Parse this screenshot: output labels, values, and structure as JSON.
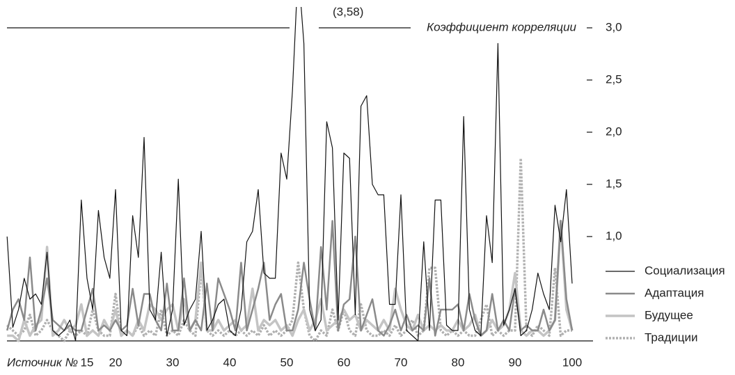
{
  "chart_data": {
    "type": "line",
    "annotation": "(3,58)",
    "y_label": "Коэффициент корреляции",
    "x_label": "Источник №",
    "x": [
      1,
      2,
      3,
      4,
      5,
      6,
      7,
      8,
      9,
      10,
      11,
      12,
      13,
      14,
      15,
      16,
      17,
      18,
      19,
      20,
      21,
      22,
      23,
      24,
      25,
      26,
      27,
      28,
      29,
      30,
      31,
      32,
      33,
      34,
      35,
      36,
      37,
      38,
      39,
      40,
      41,
      42,
      43,
      44,
      45,
      46,
      47,
      48,
      49,
      50,
      51,
      52,
      53,
      54,
      55,
      56,
      57,
      58,
      59,
      60,
      61,
      62,
      63,
      64,
      65,
      66,
      67,
      68,
      69,
      70,
      71,
      72,
      73,
      74,
      75,
      76,
      77,
      78,
      79,
      80,
      81,
      82,
      83,
      84,
      85,
      86,
      87,
      88,
      89,
      90,
      91,
      92,
      93,
      94,
      95,
      96,
      97,
      98,
      99,
      100
    ],
    "xlim": [
      0,
      100
    ],
    "xticks": [
      15,
      20,
      30,
      40,
      50,
      60,
      70,
      80,
      90,
      100
    ],
    "ylim": [
      0,
      3
    ],
    "yticks": [
      {
        "value": 1,
        "label": "1,0"
      },
      {
        "value": 1.5,
        "label": "1,5"
      },
      {
        "value": 2,
        "label": "2,0"
      },
      {
        "value": 2.5,
        "label": "2,5"
      },
      {
        "value": 3,
        "label": "3,0"
      }
    ],
    "grid": false,
    "series": [
      {
        "name": "Социализация",
        "color": "#111111",
        "width": 1.2,
        "dash": false,
        "values": [
          1.0,
          0.13,
          0.3,
          0.6,
          0.4,
          0.45,
          0.35,
          0.85,
          0.1,
          0.05,
          0.1,
          0.2,
          0.0,
          1.35,
          0.6,
          0.3,
          1.25,
          0.8,
          0.6,
          1.45,
          0.1,
          0.05,
          1.2,
          0.8,
          1.95,
          0.3,
          0.2,
          0.85,
          0.05,
          0.3,
          1.55,
          0.15,
          0.3,
          0.4,
          1.05,
          0.1,
          0.2,
          0.35,
          0.4,
          0.1,
          0.05,
          0.3,
          0.95,
          1.05,
          1.45,
          0.65,
          0.6,
          0.6,
          1.8,
          1.55,
          2.4,
          3.58,
          2.85,
          0.3,
          0.1,
          0.2,
          2.1,
          1.85,
          0.2,
          1.8,
          1.75,
          0.25,
          2.25,
          2.35,
          1.5,
          1.4,
          1.4,
          0.35,
          0.35,
          1.4,
          0.1,
          0.05,
          0.0,
          0.95,
          0.1,
          1.35,
          1.35,
          0.15,
          0.1,
          0.1,
          2.15,
          0.3,
          0.1,
          0.05,
          1.2,
          0.75,
          2.85,
          0.15,
          0.3,
          0.5,
          0.05,
          0.1,
          0.3,
          0.65,
          0.45,
          0.3,
          1.3,
          0.95,
          1.45,
          0.55
        ]
      },
      {
        "name": "Адаптация",
        "color": "#8a8a8a",
        "width": 2.5,
        "dash": false,
        "values": [
          0.1,
          0.3,
          0.4,
          0.2,
          0.8,
          0.1,
          0.3,
          0.6,
          0.2,
          0.15,
          0.1,
          0.15,
          0.1,
          0.1,
          0.3,
          0.5,
          0.1,
          0.15,
          0.1,
          0.2,
          0.1,
          0.15,
          0.5,
          0.15,
          0.45,
          0.45,
          0.2,
          0.1,
          0.55,
          0.1,
          0.1,
          0.6,
          0.1,
          0.2,
          0.1,
          0.55,
          0.1,
          0.6,
          0.45,
          0.3,
          0.1,
          0.75,
          0.1,
          0.3,
          0.5,
          0.75,
          0.2,
          0.35,
          0.45,
          0.1,
          0.1,
          0.3,
          0.75,
          0.4,
          0.1,
          0.9,
          0.3,
          1.15,
          0.1,
          0.35,
          0.4,
          1.0,
          0.1,
          0.25,
          0.4,
          0.1,
          0.05,
          0.15,
          0.3,
          0.1,
          0.25,
          0.1,
          0.15,
          0.1,
          0.6,
          0.05,
          0.3,
          0.3,
          0.3,
          0.35,
          0.1,
          0.45,
          0.2,
          0.05,
          0.1,
          0.45,
          0.1,
          0.2,
          0.1,
          0.5,
          0.1,
          0.15,
          0.1,
          0.1,
          0.3,
          0.1,
          0.2,
          1.15,
          0.4,
          0.1
        ]
      },
      {
        "name": "Будущее",
        "color": "#c4c4c4",
        "width": 3.5,
        "dash": false,
        "values": [
          0.05,
          0.05,
          0.0,
          0.2,
          0.05,
          0.15,
          0.2,
          0.9,
          0.05,
          0.1,
          0.2,
          0.1,
          0.15,
          0.35,
          0.05,
          0.1,
          0.05,
          0.2,
          0.1,
          0.3,
          0.05,
          0.1,
          0.05,
          0.2,
          0.1,
          0.35,
          0.3,
          0.2,
          0.3,
          0.35,
          0.1,
          0.4,
          0.1,
          0.2,
          0.75,
          0.1,
          0.1,
          0.2,
          0.1,
          0.15,
          0.2,
          0.1,
          0.15,
          0.5,
          0.1,
          0.2,
          0.15,
          0.2,
          0.1,
          0.15,
          0.05,
          0.2,
          0.3,
          0.1,
          0.2,
          0.4,
          0.1,
          0.15,
          0.2,
          0.3,
          0.2,
          0.25,
          0.1,
          0.2,
          0.15,
          0.1,
          0.2,
          0.1,
          0.5,
          0.3,
          0.15,
          0.1,
          0.25,
          0.1,
          0.15,
          0.1,
          0.15,
          0.1,
          0.1,
          0.2,
          0.1,
          0.15,
          0.25,
          0.05,
          0.1,
          0.2,
          0.1,
          0.15,
          0.3,
          0.65,
          0.1,
          0.05,
          0.1,
          0.1,
          0.05,
          0.1,
          0.2,
          1.15,
          0.3,
          0.1
        ]
      },
      {
        "name": "Традиции",
        "color": "#b0b0b0",
        "width": 3.5,
        "dash": true,
        "values": [
          0.15,
          0.1,
          0.05,
          0.1,
          0.25,
          0.05,
          0.1,
          0.2,
          0.1,
          0.05,
          0.0,
          0.1,
          0.05,
          0.1,
          0.05,
          0.3,
          0.1,
          0.05,
          0.05,
          0.45,
          0.05,
          0.1,
          0.05,
          0.15,
          0.05,
          0.1,
          0.05,
          0.3,
          0.05,
          0.1,
          0.05,
          0.2,
          0.1,
          0.05,
          0.7,
          0.1,
          0.05,
          0.1,
          0.05,
          0.1,
          0.05,
          0.1,
          0.05,
          0.1,
          0.05,
          0.15,
          0.05,
          0.1,
          0.05,
          0.1,
          0.2,
          0.75,
          0.3,
          0.05,
          0.0,
          0.1,
          0.05,
          0.3,
          0.1,
          0.3,
          0.1,
          0.05,
          0.35,
          0.1,
          0.05,
          0.05,
          0.1,
          0.05,
          0.15,
          0.05,
          0.1,
          0.2,
          0.05,
          0.1,
          0.7,
          0.7,
          0.1,
          0.05,
          0.1,
          0.05,
          0.1,
          0.05,
          0.05,
          0.2,
          0.35,
          0.05,
          0.1,
          0.05,
          0.1,
          0.1,
          1.75,
          0.1,
          0.05,
          0.15,
          0.1,
          0.05,
          0.7,
          0.05,
          0.1,
          0.1
        ]
      }
    ]
  }
}
